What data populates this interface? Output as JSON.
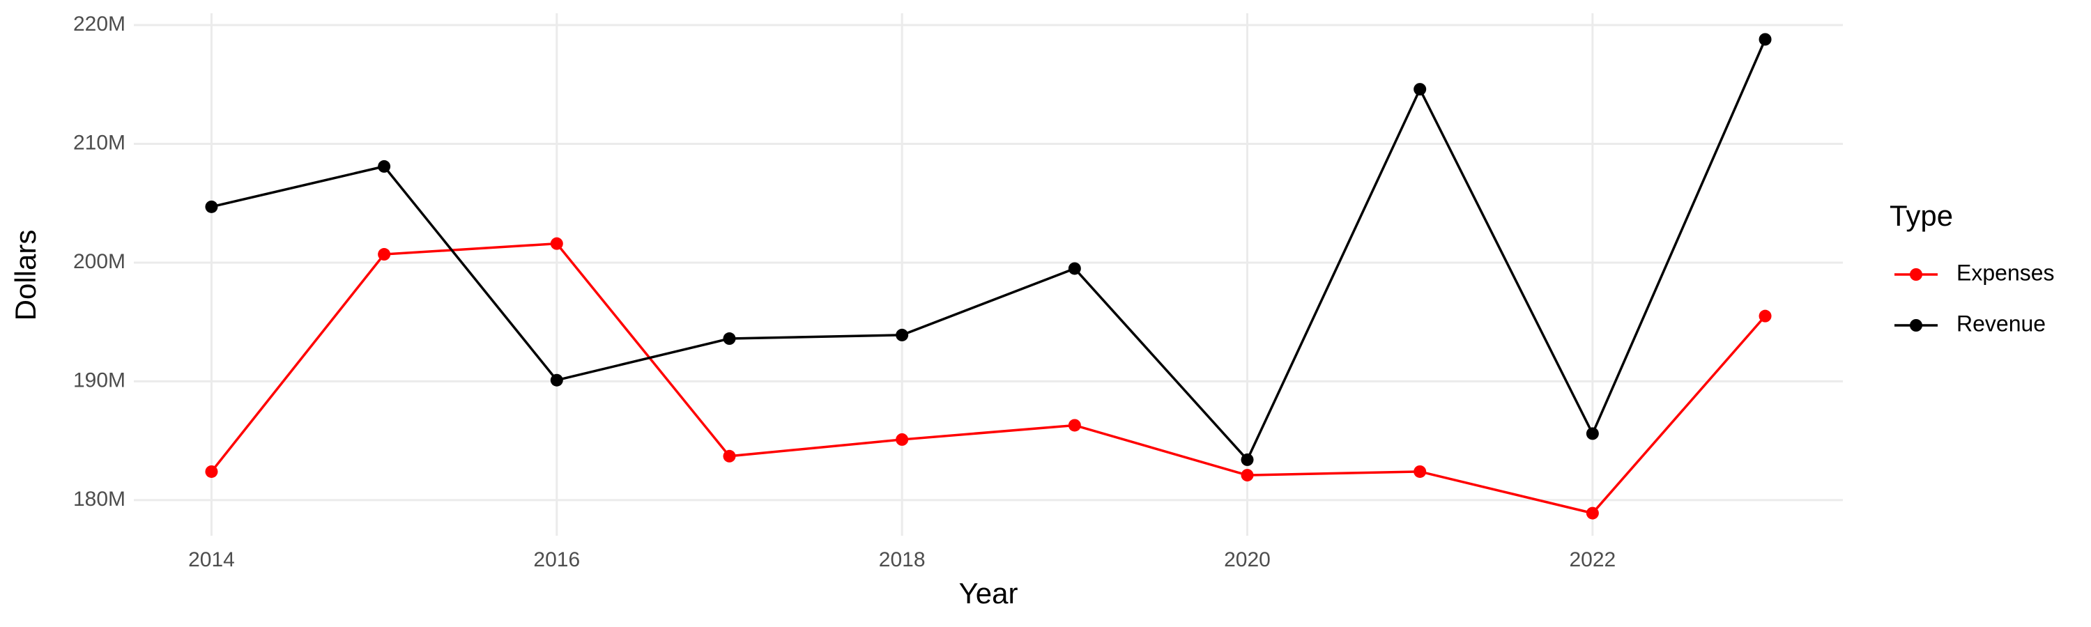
{
  "chart_data": {
    "type": "line",
    "x_label": "Year",
    "y_label": "Dollars",
    "legend_title": "Type",
    "x": [
      2014,
      2015,
      2016,
      2017,
      2018,
      2019,
      2020,
      2021,
      2022,
      2023
    ],
    "series": [
      {
        "name": "Expenses",
        "color": "#ff0000",
        "values": [
          182400000,
          200700000,
          201600000,
          183700000,
          185100000,
          186300000,
          182100000,
          182400000,
          178900000,
          195500000
        ]
      },
      {
        "name": "Revenue",
        "color": "#000000",
        "values": [
          204700000,
          208100000,
          190100000,
          193600000,
          193900000,
          199500000,
          183400000,
          214600000,
          185600000,
          218800000
        ]
      }
    ],
    "xlim": [
      2013.55,
      2023.45
    ],
    "xticks": [
      2014,
      2016,
      2018,
      2020,
      2022
    ],
    "ylim": [
      177000000,
      221000000
    ],
    "yticks": [
      {
        "value": 180000000,
        "label": "180M"
      },
      {
        "value": 190000000,
        "label": "190M"
      },
      {
        "value": 200000000,
        "label": "200M"
      },
      {
        "value": 210000000,
        "label": "210M"
      },
      {
        "value": 220000000,
        "label": "220M"
      }
    ],
    "grid": true,
    "legend": "right"
  }
}
